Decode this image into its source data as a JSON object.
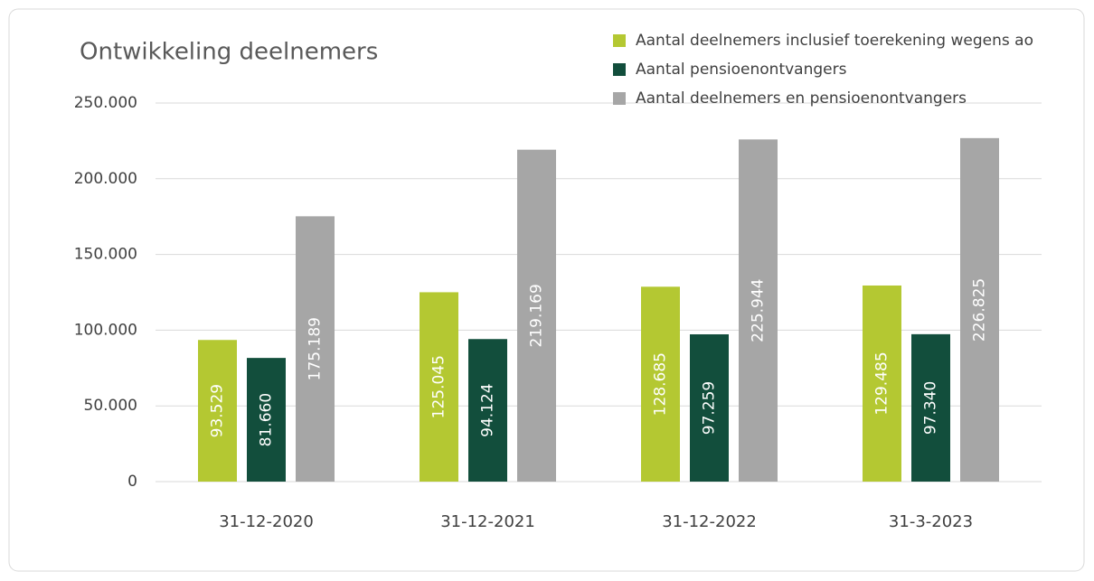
{
  "chart_data": {
    "type": "bar",
    "title": "Ontwikkeling deelnemers",
    "categories": [
      "31-12-2020",
      "31-12-2021",
      "31-12-2022",
      "31-3-2023"
    ],
    "series": [
      {
        "name": "Aantal deelnemers inclusief toerekening wegens ao",
        "color": "#b4c832",
        "values": [
          93529,
          125045,
          128685,
          129485
        ],
        "value_labels": [
          "93.529",
          "125.045",
          "128.685",
          "129.485"
        ]
      },
      {
        "name": "Aantal pensioenontvangers",
        "color": "#124e3c",
        "values": [
          81660,
          94124,
          97259,
          97340
        ],
        "value_labels": [
          "81.660",
          "94.124",
          "97.259",
          "97.340"
        ]
      },
      {
        "name": "Aantal deelnemers en pensioenontvangers",
        "color": "#a6a6a6",
        "values": [
          175189,
          219169,
          225944,
          226825
        ],
        "value_labels": [
          "175.189",
          "219.169",
          "225.944",
          "226.825"
        ]
      }
    ],
    "ylim": [
      0,
      250000
    ],
    "yticks": [
      0,
      {
        "value": 50000,
        "label": "50.000"
      },
      {
        "value": 100000,
        "label": "100.000"
      },
      {
        "value": 150000,
        "label": "150.000"
      },
      {
        "value": 200000,
        "label": "200.000"
      },
      {
        "value": 250000,
        "label": "250.000"
      }
    ],
    "grid": true,
    "legend": "top-right"
  }
}
